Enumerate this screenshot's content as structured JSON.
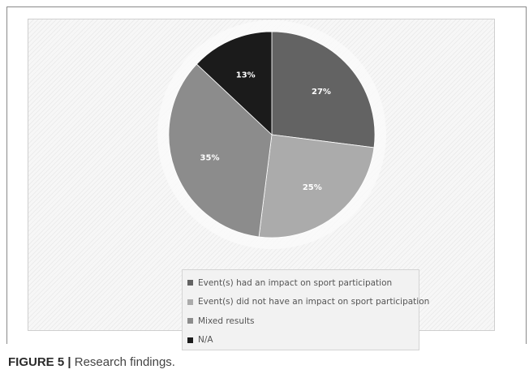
{
  "chart_data": {
    "type": "pie",
    "slices": [
      {
        "label": "Event(s) had an impact on sport participation",
        "value": 27,
        "display": "27%",
        "color": "#636363"
      },
      {
        "label": "Event(s) did not have an impact on sport participation",
        "value": 25,
        "display": "25%",
        "color": "#ababab"
      },
      {
        "label": "Mixed results",
        "value": 35,
        "display": "35%",
        "color": "#8c8c8c"
      },
      {
        "label": "N/A",
        "value": 13,
        "display": "13%",
        "color": "#1b1b1b"
      }
    ],
    "start_angle_deg": 0,
    "direction": "clockwise",
    "legend_position": "bottom"
  },
  "caption": {
    "label": "FIGURE 5",
    "separator": "|",
    "text": "Research findings."
  }
}
